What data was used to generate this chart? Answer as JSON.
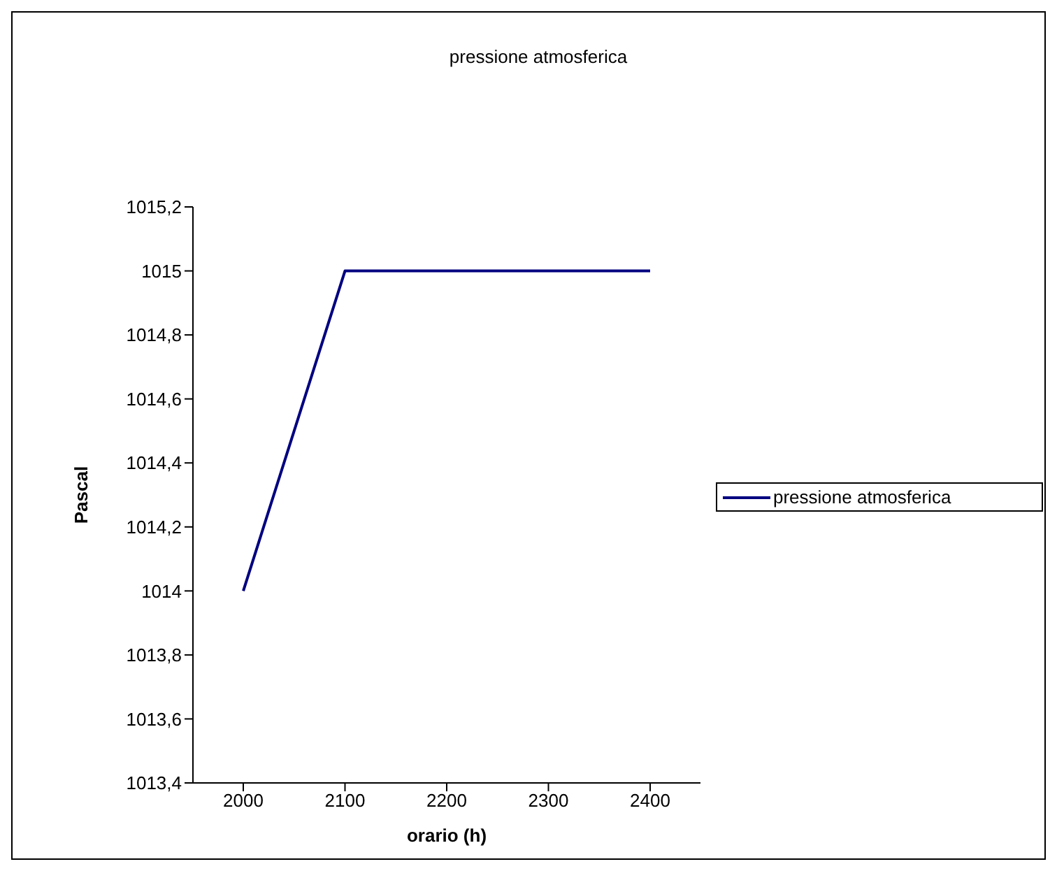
{
  "chart_data": {
    "type": "line",
    "title": "pressione atmosferica",
    "xlabel": "orario (h)",
    "ylabel": "Pascal",
    "categories": [
      "2000",
      "2100",
      "2200",
      "2300",
      "2400"
    ],
    "series": [
      {
        "name": "pressione atmosferica",
        "color": "#000080",
        "values": [
          1014,
          1015,
          1015,
          1015,
          1015
        ]
      }
    ],
    "ylim": [
      1013.4,
      1015.2
    ],
    "yticks": [
      {
        "value": 1013.4,
        "label": "1013,4"
      },
      {
        "value": 1013.6,
        "label": "1013,6"
      },
      {
        "value": 1013.8,
        "label": "1013,8"
      },
      {
        "value": 1014,
        "label": "1014"
      },
      {
        "value": 1014.2,
        "label": "1014,2"
      },
      {
        "value": 1014.4,
        "label": "1014,4"
      },
      {
        "value": 1014.6,
        "label": "1014,6"
      },
      {
        "value": 1014.8,
        "label": "1014,8"
      },
      {
        "value": 1015,
        "label": "1015"
      },
      {
        "value": 1015.2,
        "label": "1015,2"
      }
    ],
    "grid": false,
    "legend": "right",
    "marker": "none",
    "line_style": "solid"
  }
}
